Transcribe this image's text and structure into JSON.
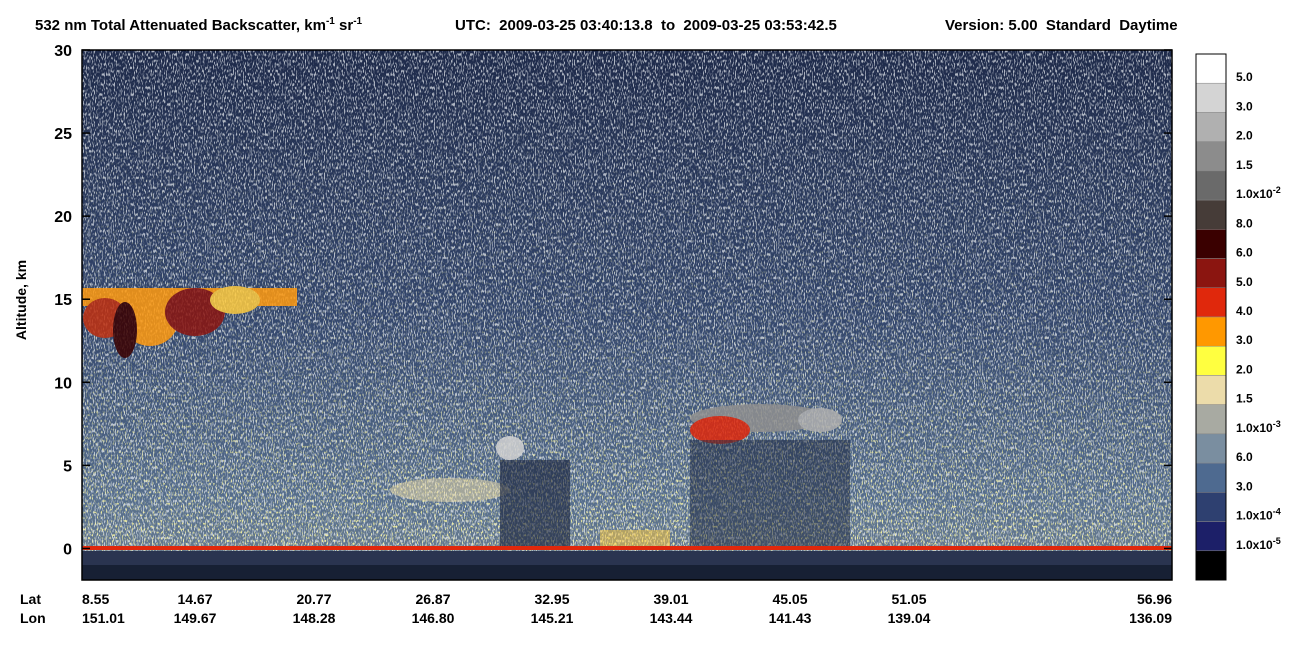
{
  "chart_data": {
    "type": "heatmap",
    "title": {
      "text": "532 nm Total Attenuated Backscatter, km",
      "exp1": "-1",
      "text2": " sr",
      "exp2": "-1"
    },
    "subtitle": "UTC:  2009-03-25 03:40:13.8  to  2009-03-25 03:53:42.5",
    "version": "Version: 5.00  Standard  Daytime",
    "ylabel": "Altitude, km",
    "ylim": [
      -1.9,
      30
    ],
    "yticks": [
      0,
      5,
      10,
      15,
      20,
      25,
      30
    ],
    "x_rows": [
      {
        "name": "Lat",
        "labels": [
          "8.55",
          "14.67",
          "20.77",
          "26.87",
          "32.95",
          "39.01",
          "45.05",
          "51.05",
          "56.96"
        ]
      },
      {
        "name": "Lon",
        "labels": [
          "151.01",
          "149.67",
          "148.28",
          "146.80",
          "145.21",
          "143.44",
          "141.43",
          "139.04",
          "136.09"
        ]
      }
    ],
    "colorbar": [
      {
        "label": "5.0",
        "color": "#ffffff"
      },
      {
        "label": "3.0",
        "color": "#d4d4d4"
      },
      {
        "label": "2.0",
        "color": "#b0b0b0"
      },
      {
        "label": "1.5",
        "color": "#8c8c8c"
      },
      {
        "base": "1.0x10",
        "exp": "-2",
        "color": "#6a6a6a"
      },
      {
        "label": "8.0",
        "color": "#463c38"
      },
      {
        "label": "6.0",
        "color": "#3a0000"
      },
      {
        "label": "5.0",
        "color": "#8b1510"
      },
      {
        "label": "4.0",
        "color": "#e0280c"
      },
      {
        "label": "3.0",
        "color": "#ff9800"
      },
      {
        "label": "2.0",
        "color": "#ffff40"
      },
      {
        "label": "1.5",
        "color": "#ecdcaa"
      },
      {
        "base": "1.0x10",
        "exp": "-3",
        "color": "#a8aaa2"
      },
      {
        "label": "6.0",
        "color": "#7a8ea0"
      },
      {
        "label": "3.0",
        "color": "#4e6a90"
      },
      {
        "base": "1.0x10",
        "exp": "-4",
        "color": "#2e4070"
      },
      {
        "base": "1.0x10",
        "exp": "-5",
        "color": "#1c1f68"
      },
      {
        "color": "#000000"
      }
    ]
  }
}
